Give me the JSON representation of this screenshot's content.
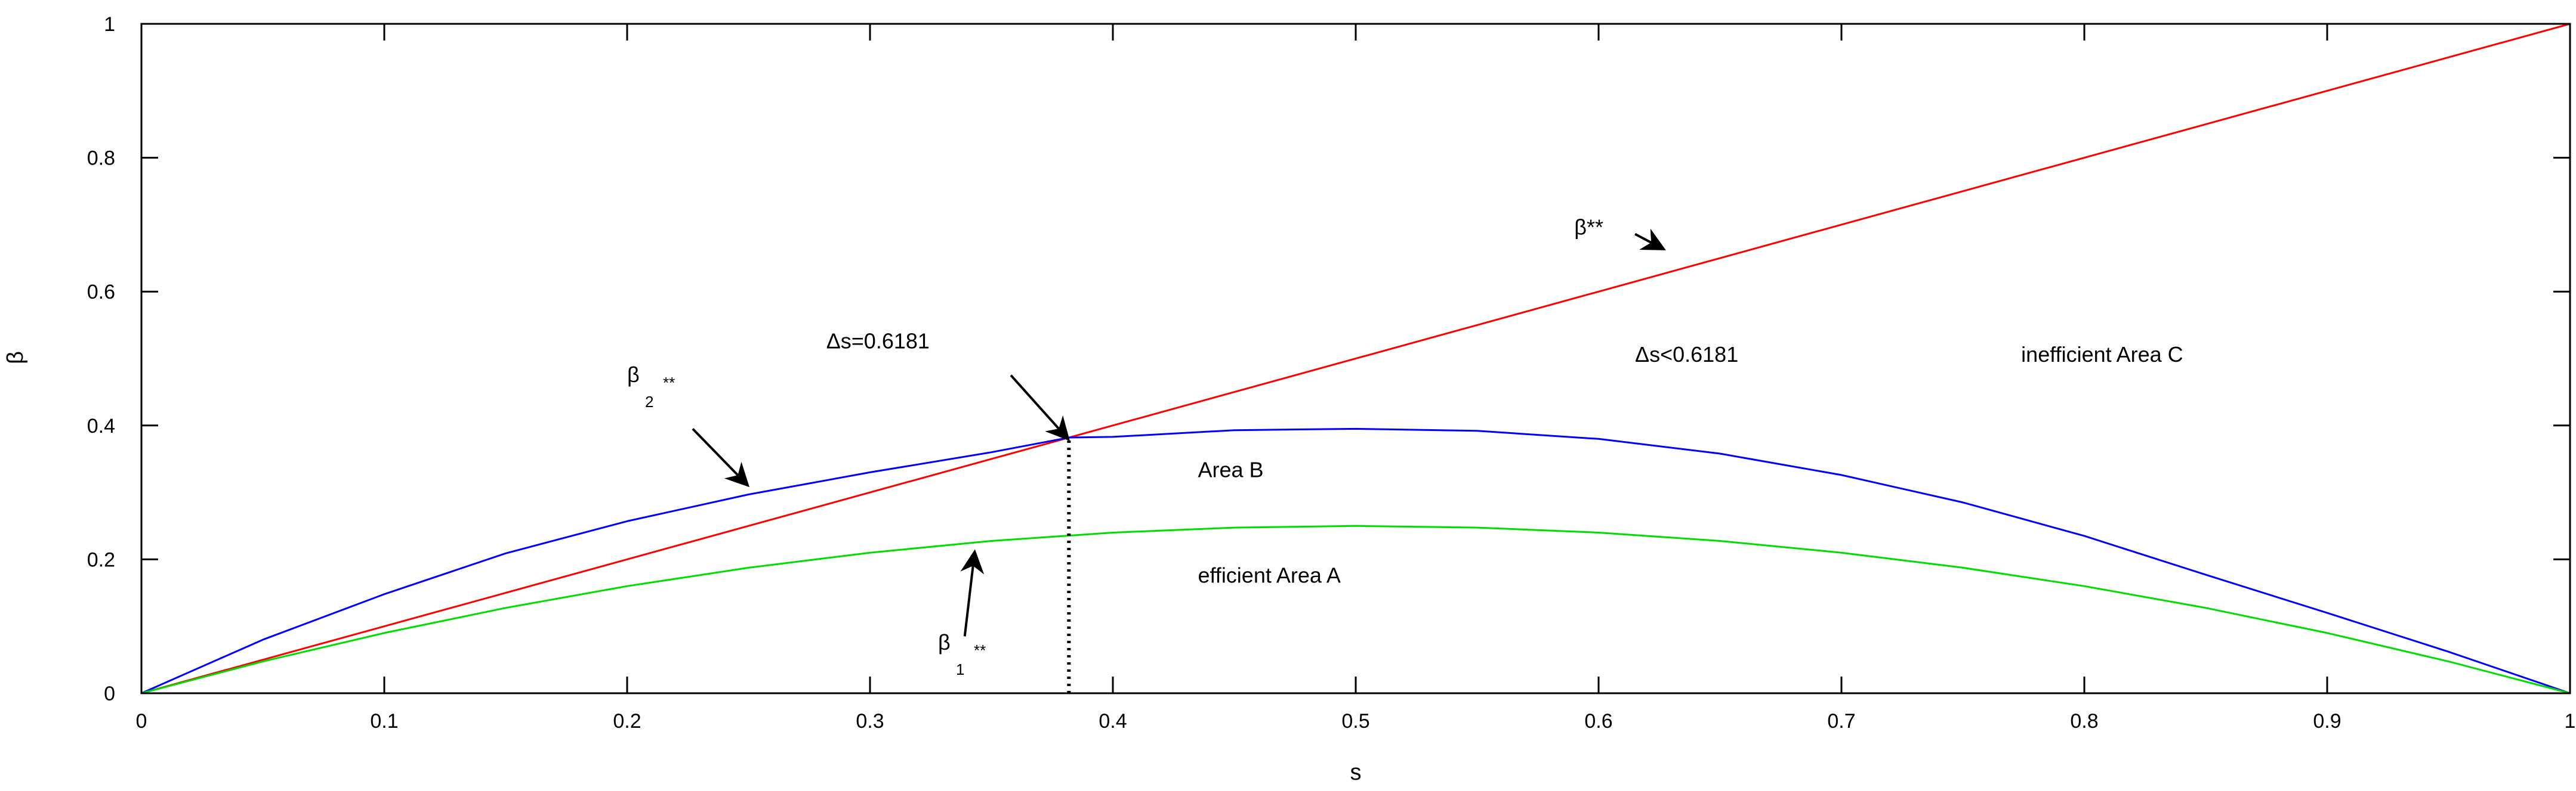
{
  "chart_data": {
    "type": "line",
    "xlabel": "s",
    "ylabel": "β",
    "xlim": [
      0,
      1
    ],
    "ylim": [
      0,
      1
    ],
    "grid": false,
    "x_ticks": [
      {
        "value": 0,
        "label": "0"
      },
      {
        "value": 0.1,
        "label": "0.1"
      },
      {
        "value": 0.2,
        "label": "0.2"
      },
      {
        "value": 0.3,
        "label": "0.3"
      },
      {
        "value": 0.4,
        "label": "0.4"
      },
      {
        "value": 0.5,
        "label": "0.5"
      },
      {
        "value": 0.6,
        "label": "0.6"
      },
      {
        "value": 0.7,
        "label": "0.7"
      },
      {
        "value": 0.8,
        "label": "0.8"
      },
      {
        "value": 0.9,
        "label": "0.9"
      },
      {
        "value": 1,
        "label": "1"
      }
    ],
    "y_ticks": [
      {
        "value": 0,
        "label": "0"
      },
      {
        "value": 0.2,
        "label": "0.2"
      },
      {
        "value": 0.4,
        "label": "0.4"
      },
      {
        "value": 0.6,
        "label": "0.6"
      },
      {
        "value": 0.8,
        "label": "0.8"
      },
      {
        "value": 1,
        "label": "1"
      }
    ],
    "series": [
      {
        "color": "#ff0000",
        "x": [
          0,
          1
        ],
        "y": [
          0,
          1
        ]
      },
      {
        "color": "#0000ff",
        "x": [
          0,
          0.05,
          0.1,
          0.15,
          0.2,
          0.25,
          0.3,
          0.35,
          0.382,
          0.4,
          0.45,
          0.5,
          0.55,
          0.6,
          0.65,
          0.7,
          0.75,
          0.8,
          0.85,
          0.9,
          0.95,
          1
        ],
        "y": [
          0,
          0.08,
          0.148,
          0.209,
          0.257,
          0.297,
          0.33,
          0.36,
          0.382,
          0.383,
          0.393,
          0.395,
          0.392,
          0.38,
          0.358,
          0.326,
          0.285,
          0.235,
          0.177,
          0.12,
          0.062,
          0
        ]
      },
      {
        "color": "#00dd00",
        "x": [
          0,
          0.05,
          0.1,
          0.15,
          0.2,
          0.25,
          0.3,
          0.35,
          0.4,
          0.45,
          0.5,
          0.55,
          0.6,
          0.65,
          0.7,
          0.75,
          0.8,
          0.85,
          0.9,
          0.95,
          1
        ],
        "y": [
          0,
          0.0475,
          0.09,
          0.1275,
          0.16,
          0.1875,
          0.21,
          0.2275,
          0.24,
          0.2475,
          0.25,
          0.2475,
          0.24,
          0.2275,
          0.21,
          0.1875,
          0.16,
          0.1275,
          0.09,
          0.0475,
          0
        ]
      }
    ],
    "dotted_line": {
      "x": 0.3819,
      "y_from": 0,
      "y_to": 0.382,
      "color": "#000000"
    },
    "annotations": [
      {
        "id": "beta-star",
        "text": "β**",
        "x": 0.59,
        "y": 0.685
      },
      {
        "id": "delta-s-eq",
        "text": "Δs=0.6181",
        "x": 0.282,
        "y": 0.515
      },
      {
        "id": "delta-s-lt",
        "text": "Δs<0.6181",
        "x": 0.615,
        "y": 0.495
      },
      {
        "id": "inefficient-c",
        "text": "inefficient Area C",
        "x": 0.774,
        "y": 0.495
      },
      {
        "id": "area-b",
        "text": "Area B",
        "x": 0.435,
        "y": 0.323
      },
      {
        "id": "efficient-a",
        "text": "efficient Area A",
        "x": 0.435,
        "y": 0.165
      }
    ],
    "sub_annotations": [
      {
        "id": "beta-2",
        "main": "β",
        "sub": "2",
        "sup": "**",
        "x": 0.2,
        "y": 0.465
      },
      {
        "id": "beta-1",
        "main": "β",
        "sub": "1",
        "sup": "**",
        "x": 0.328,
        "y": 0.065
      }
    ],
    "arrows": [
      {
        "id": "arrow-beta-star",
        "from": [
          0.615,
          0.686
        ],
        "to": [
          0.626,
          0.665
        ]
      },
      {
        "id": "arrow-delta-s",
        "from": [
          0.358,
          0.475
        ],
        "to": [
          0.381,
          0.382
        ]
      },
      {
        "id": "arrow-beta-2",
        "from": [
          0.227,
          0.395
        ],
        "to": [
          0.249,
          0.313
        ]
      },
      {
        "id": "arrow-beta-1",
        "from": [
          0.339,
          0.085
        ],
        "to": [
          0.343,
          0.208
        ]
      }
    ]
  }
}
